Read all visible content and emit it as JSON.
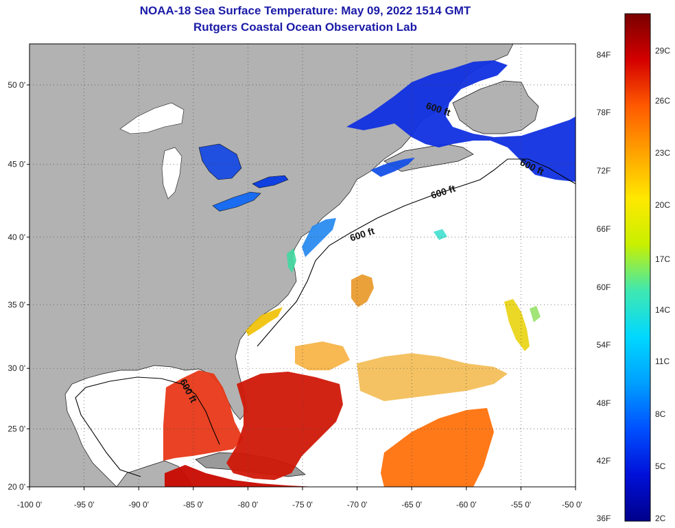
{
  "title_line1": "NOAA-18 Sea Surface Temperature:  May 09, 2022 1514 GMT",
  "title_line2": "Rutgers Coastal Ocean Observation Lab",
  "lat_labels": [
    {
      "value": 50,
      "text": "50 0'"
    },
    {
      "value": 45,
      "text": "45 0'"
    },
    {
      "value": 40,
      "text": "40 0'"
    },
    {
      "value": 35,
      "text": "35 0'"
    },
    {
      "value": 30,
      "text": "30 0'"
    },
    {
      "value": 25,
      "text": "25 0'"
    },
    {
      "value": 20,
      "text": "20 0'"
    }
  ],
  "lon_labels": [
    {
      "value": -100,
      "text": "-100 0'"
    },
    {
      "value": -95,
      "text": "-95 0'"
    },
    {
      "value": -90,
      "text": "-90 0'"
    },
    {
      "value": -85,
      "text": "-85 0'"
    },
    {
      "value": -80,
      "text": "-80 0'"
    },
    {
      "value": -75,
      "text": "-75 0'"
    },
    {
      "value": -70,
      "text": "-70 0'"
    },
    {
      "value": -65,
      "text": "-65 0'"
    },
    {
      "value": -60,
      "text": "-60 0'"
    },
    {
      "value": -55,
      "text": "-55 0'"
    },
    {
      "value": -50,
      "text": "-50 0'"
    }
  ],
  "contour_label": "600 ft",
  "scale_f": [
    "84F",
    "78F",
    "72F",
    "66F",
    "60F",
    "54F",
    "48F",
    "42F",
    "36F"
  ],
  "scale_c": [
    "29C",
    "26C",
    "23C",
    "20C",
    "17C",
    "14C",
    "11C",
    "8C",
    "5C",
    "2C"
  ],
  "colorbar_colors": [
    "#7a0000",
    "#d40000",
    "#ff5a00",
    "#ffa200",
    "#ffe800",
    "#c8f000",
    "#40e8b0",
    "#00d8ff",
    "#00a0ff",
    "#0050ff",
    "#0010d8",
    "#00008a"
  ],
  "land_color": "#b2b2b2",
  "ocean_color": "#ffffff"
}
